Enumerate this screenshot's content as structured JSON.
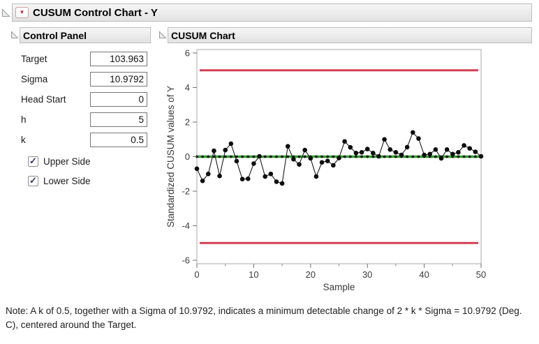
{
  "window": {
    "title": "CUSUM Control Chart - Y"
  },
  "icons": {
    "menu_triangle": "▼",
    "checkmark": "✓",
    "disclosure": "open-triangle"
  },
  "control_panel": {
    "title": "Control Panel",
    "fields": [
      {
        "label": "Target",
        "value": "103.963"
      },
      {
        "label": "Sigma",
        "value": "10.9792"
      },
      {
        "label": "Head Start",
        "value": "0"
      },
      {
        "label": "h",
        "value": "5"
      },
      {
        "label": "k",
        "value": "0.5"
      }
    ],
    "checkboxes": [
      {
        "label": "Upper Side",
        "checked": true
      },
      {
        "label": "Lower Side",
        "checked": true
      }
    ]
  },
  "chart_panel": {
    "title": "CUSUM Chart"
  },
  "chart_data": {
    "type": "line",
    "title": "",
    "xlabel": "Sample",
    "ylabel": "Standardized CUSUM values of Y",
    "xlim": [
      0,
      50
    ],
    "ylim": [
      -6,
      6
    ],
    "x_ticks": [
      0,
      10,
      20,
      30,
      40,
      50
    ],
    "x_minor_ticks": [
      5,
      15,
      25,
      35,
      45
    ],
    "y_ticks": [
      -6,
      -4,
      -2,
      0,
      2,
      4,
      6
    ],
    "grid": false,
    "upper_limit": 5,
    "lower_limit": -5,
    "center_line": 0,
    "colors": {
      "limit": "#d23f55",
      "center": "#28a428",
      "series": "#0d0d0d"
    },
    "series": [
      {
        "name": "Standardized CUSUM of Y",
        "marker": "filled-circle",
        "x": [
          0,
          1,
          2,
          3,
          4,
          5,
          6,
          7,
          8,
          9,
          10,
          11,
          12,
          13,
          14,
          15,
          16,
          17,
          18,
          19,
          20,
          21,
          22,
          23,
          24,
          25,
          26,
          27,
          28,
          29,
          30,
          31,
          32,
          33,
          34,
          35,
          36,
          37,
          38,
          39,
          40,
          41,
          42,
          43,
          44,
          45,
          46,
          47,
          48,
          49,
          50
        ],
        "y": [
          -0.7,
          -1.4,
          -1.0,
          0.34,
          -1.12,
          0.38,
          0.75,
          -0.26,
          -1.3,
          -1.28,
          -0.4,
          0.02,
          -1.15,
          -1.0,
          -1.45,
          -1.55,
          0.6,
          -0.15,
          -0.45,
          0.38,
          -0.1,
          -1.15,
          -0.33,
          -0.25,
          -0.5,
          -0.08,
          0.88,
          0.54,
          0.21,
          0.25,
          0.44,
          0.21,
          0.02,
          1.0,
          0.41,
          0.25,
          0.1,
          0.55,
          1.4,
          1.05,
          0.1,
          0.15,
          0.41,
          -0.1,
          0.41,
          0.15,
          0.25,
          0.65,
          0.48,
          0.28,
          0.02
        ]
      },
      {
        "name": "zero reference dots",
        "marker": "small-dot",
        "y_constant": 0,
        "x_from": 0,
        "x_to": 50,
        "x_step": 1
      }
    ]
  },
  "note": {
    "text": "Note: A k of 0.5, together with a Sigma of 10.9792, indicates a minimum detectable change of 2 * k * Sigma = 10.9792 (Deg. C), centered around the Target."
  }
}
